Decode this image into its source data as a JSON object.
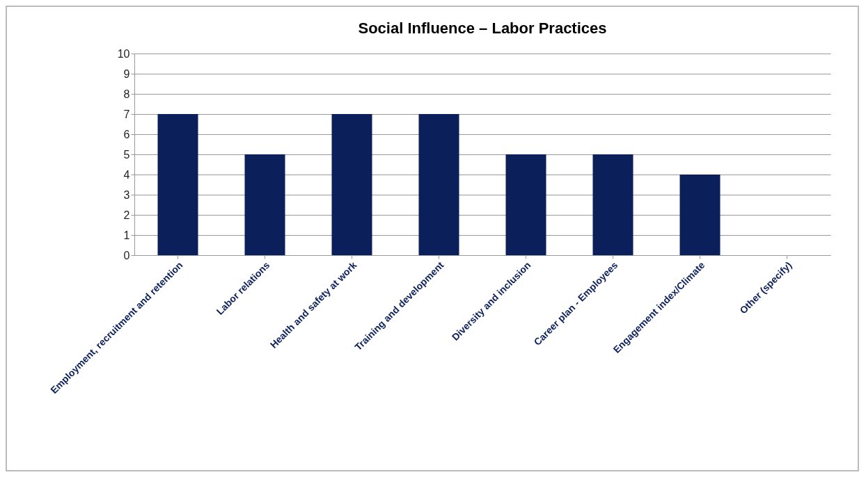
{
  "chart_data": {
    "type": "bar",
    "title": "Social Influence – Labor Practices",
    "categories": [
      "Employment, recruitment and retention",
      "Labor relations",
      "Health and safety at work",
      "Training and development",
      "Diversity and inclusion",
      "Career plan - Employees",
      "Engagement index/Climate",
      "Other (specify)"
    ],
    "values": [
      7,
      5,
      7,
      7,
      5,
      5,
      4,
      0
    ],
    "color": "#0b1f5b",
    "ylim": [
      0,
      10
    ],
    "yticks": [
      0,
      1,
      2,
      3,
      4,
      5,
      6,
      7,
      8,
      9,
      10
    ],
    "grid": "y"
  }
}
